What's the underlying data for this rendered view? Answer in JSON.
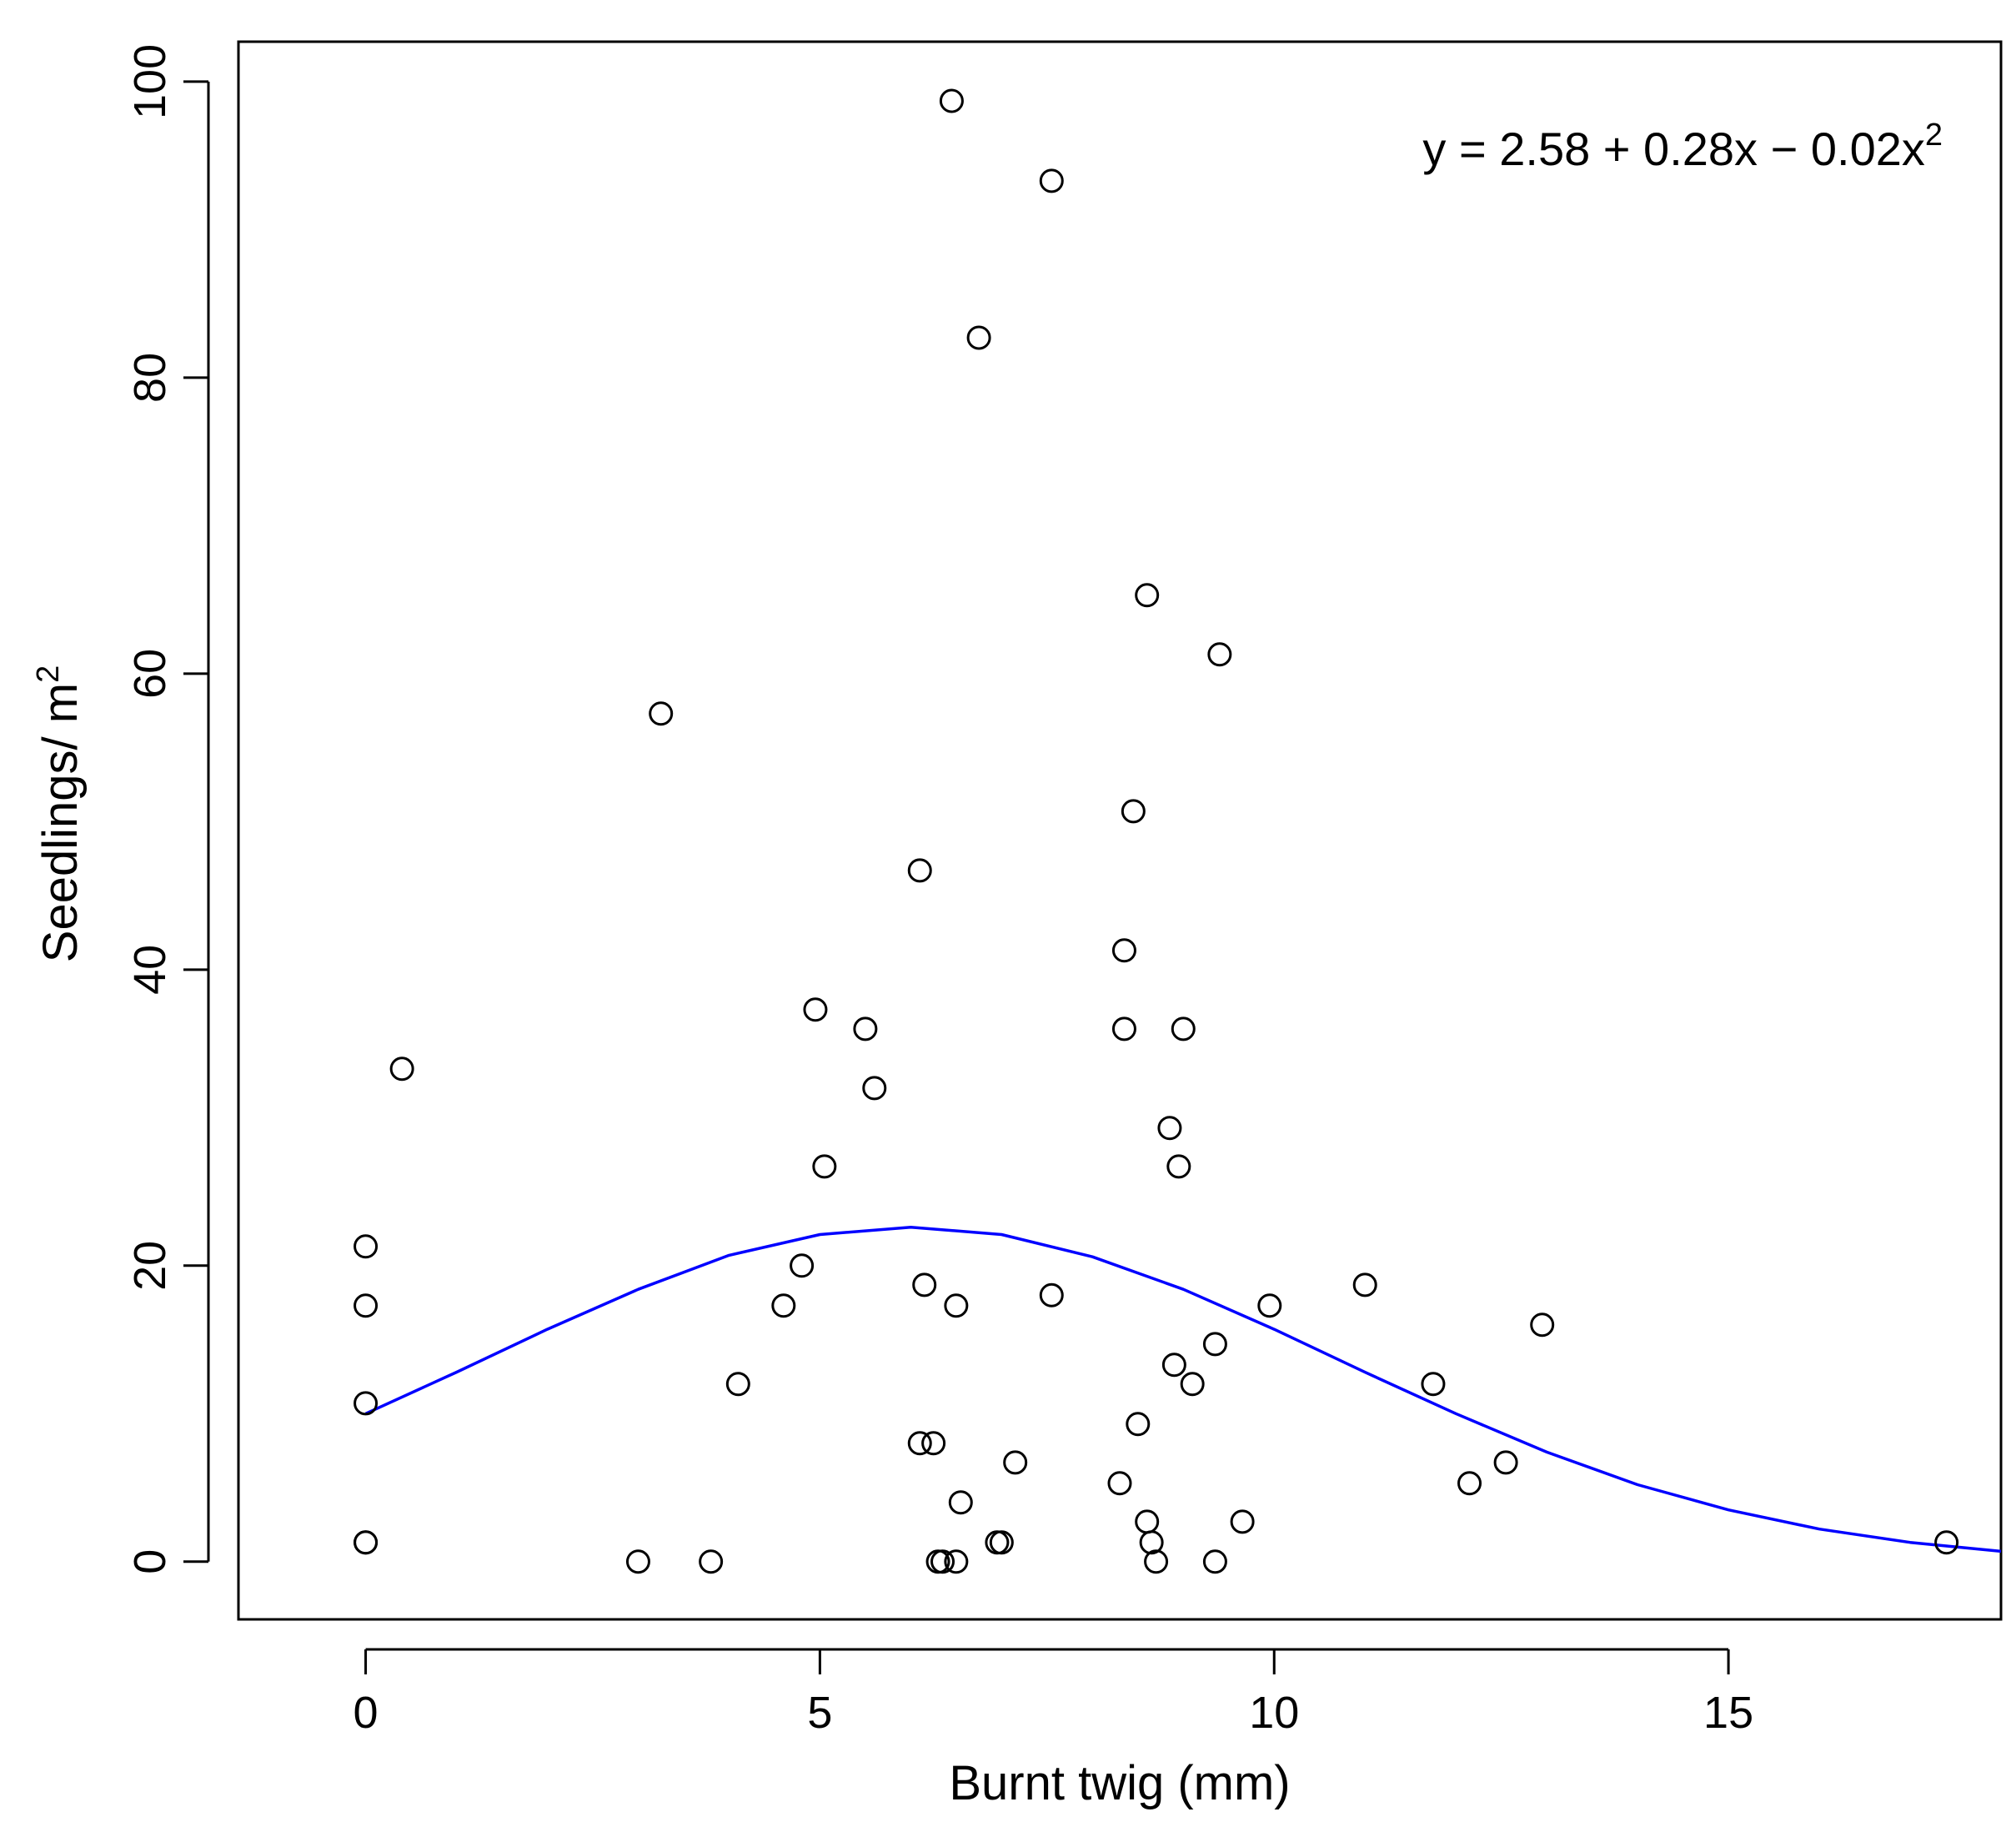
{
  "chart_data": {
    "type": "scatter",
    "xlabel": "Burnt twig (mm)",
    "ylabel": {
      "text": "Seedlings/ m",
      "superscript": "2"
    },
    "xlim": [
      -1.4,
      18.0
    ],
    "ylim": [
      -3.9,
      102.7
    ],
    "xticks": [
      0,
      5,
      10,
      15
    ],
    "yticks": [
      0,
      20,
      40,
      60,
      80,
      100
    ],
    "grid": false,
    "annotation": {
      "text": "y = 2.58 + 0.28x − 0.02x",
      "superscript": "2",
      "position": "top-right"
    },
    "colors": {
      "points": "#000000",
      "fit_line": "#0000ff",
      "frame": "#000000"
    },
    "series": [
      {
        "marker": "open-circle",
        "x": [
          0,
          0,
          0,
          0,
          0,
          0.4,
          3.0,
          3.25,
          3.8,
          4.1,
          4.6,
          4.8,
          4.95,
          5.05,
          5.5,
          5.6,
          6.1,
          6.1,
          6.15,
          6.25,
          6.3,
          6.35,
          6.45,
          6.5,
          6.5,
          6.55,
          6.75,
          6.95,
          7.0,
          7.15,
          7.55,
          7.55,
          8.3,
          8.35,
          8.35,
          8.45,
          8.5,
          8.6,
          8.6,
          8.65,
          8.7,
          8.85,
          8.9,
          8.95,
          9.0,
          9.1,
          9.35,
          9.35,
          9.4,
          9.65,
          9.95,
          11.0,
          11.75,
          12.15,
          12.55,
          12.95,
          17.4
        ],
        "y": [
          21.3,
          17.3,
          10.7,
          1.3,
          1.3,
          33.3,
          0,
          57.3,
          0,
          12.0,
          17.3,
          20.0,
          37.3,
          26.7,
          36.0,
          32.0,
          46.7,
          8.0,
          18.7,
          8.0,
          0,
          0,
          98.7,
          17.3,
          0,
          4.0,
          82.7,
          1.3,
          1.3,
          6.7,
          93.3,
          18.0,
          5.3,
          41.3,
          36.0,
          50.7,
          9.3,
          65.3,
          2.7,
          1.3,
          0,
          29.3,
          13.3,
          26.7,
          36.0,
          12.0,
          14.7,
          0,
          61.3,
          2.7,
          17.3,
          18.7,
          12.0,
          5.3,
          6.7,
          16.0,
          1.3
        ]
      },
      {
        "marker": "line",
        "x": [
          0,
          1,
          2,
          3,
          4,
          5,
          6,
          7,
          8,
          9,
          10,
          11,
          12,
          13,
          14,
          15,
          16,
          17,
          18
        ],
        "y": [
          10.0,
          12.8,
          15.7,
          18.4,
          20.7,
          22.1,
          22.6,
          22.1,
          20.6,
          18.4,
          15.7,
          12.8,
          10.0,
          7.4,
          5.2,
          3.5,
          2.2,
          1.3,
          0.7
        ]
      }
    ]
  }
}
